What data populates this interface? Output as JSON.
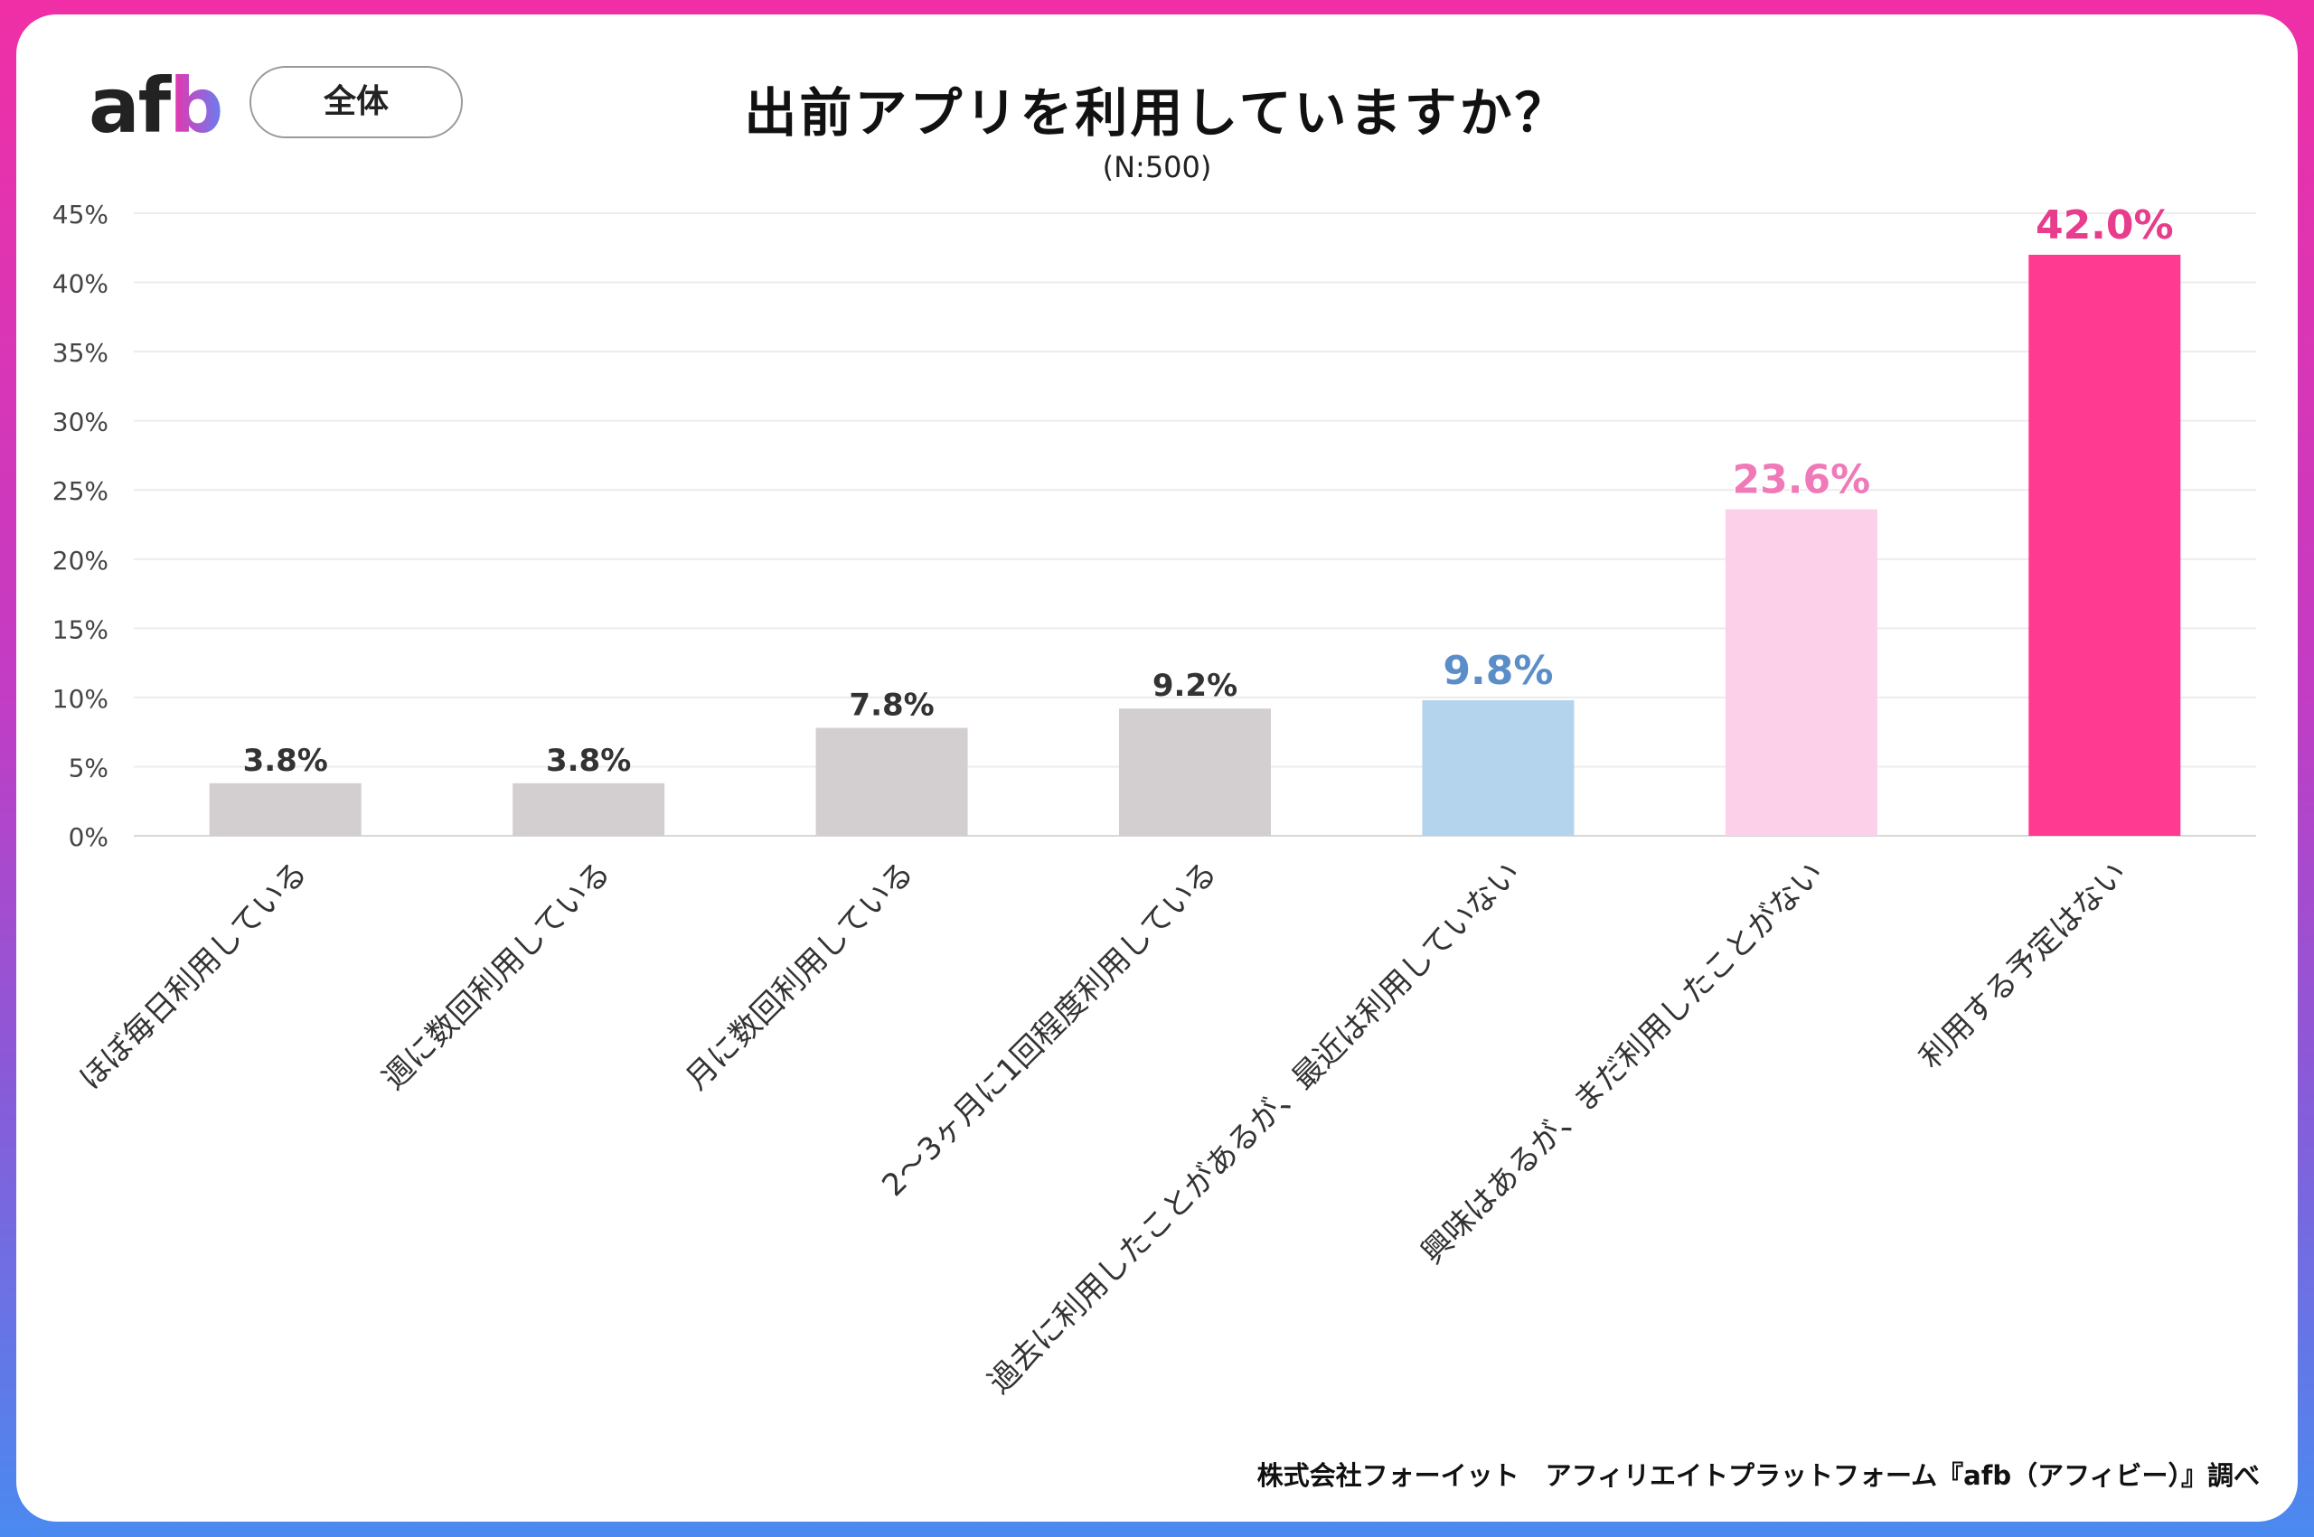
{
  "header": {
    "logo_text": "afb",
    "segment_label": "全体"
  },
  "footer": {
    "source": "株式会社フォーイット　アフィリエイトプラットフォーム『afb（アフィビー）』調べ"
  },
  "colors": {
    "gray_bar": "#d3cfd1",
    "blue_bar": "#b3d4ec",
    "light_pink_bar": "#fdd0ea",
    "pink_bar": "#ff3a90",
    "blue_label": "#5b8ec9",
    "light_pink_label": "#f07ab8",
    "pink_label": "#e83c8c",
    "dark_label": "#333333"
  },
  "chart_data": {
    "type": "bar",
    "title": "出前アプリを利用していますか？",
    "subtitle": "(N:500)",
    "xlabel": "",
    "ylabel": "",
    "ylim": [
      0,
      45
    ],
    "yticks": [
      0,
      5,
      10,
      15,
      20,
      25,
      30,
      35,
      40,
      45
    ],
    "ytick_labels": [
      "0%",
      "5%",
      "10%",
      "15%",
      "20%",
      "25%",
      "30%",
      "35%",
      "40%",
      "45%"
    ],
    "grid": true,
    "categories": [
      "ほぼ毎日利用している",
      "週に数回利用している",
      "月に数回利用している",
      "2～3ヶ月に1回程度利用している",
      "過去に利用したことがあるが、最近は利用していない",
      "興味はあるが、まだ利用したことがない",
      "利用する予定はない"
    ],
    "values": [
      3.8,
      3.8,
      7.8,
      9.2,
      9.8,
      23.6,
      42.0
    ],
    "value_labels": [
      "3.8%",
      "3.8%",
      "7.8%",
      "9.2%",
      "9.8%",
      "23.6%",
      "42.0%"
    ],
    "bar_colors": [
      "#d3cfd1",
      "#d3cfd1",
      "#d3cfd1",
      "#d3cfd1",
      "#b3d4ec",
      "#fdd0ea",
      "#ff3a90"
    ],
    "label_colors": [
      "#333333",
      "#333333",
      "#333333",
      "#333333",
      "#5b8ec9",
      "#f07ab8",
      "#e83c8c"
    ]
  }
}
